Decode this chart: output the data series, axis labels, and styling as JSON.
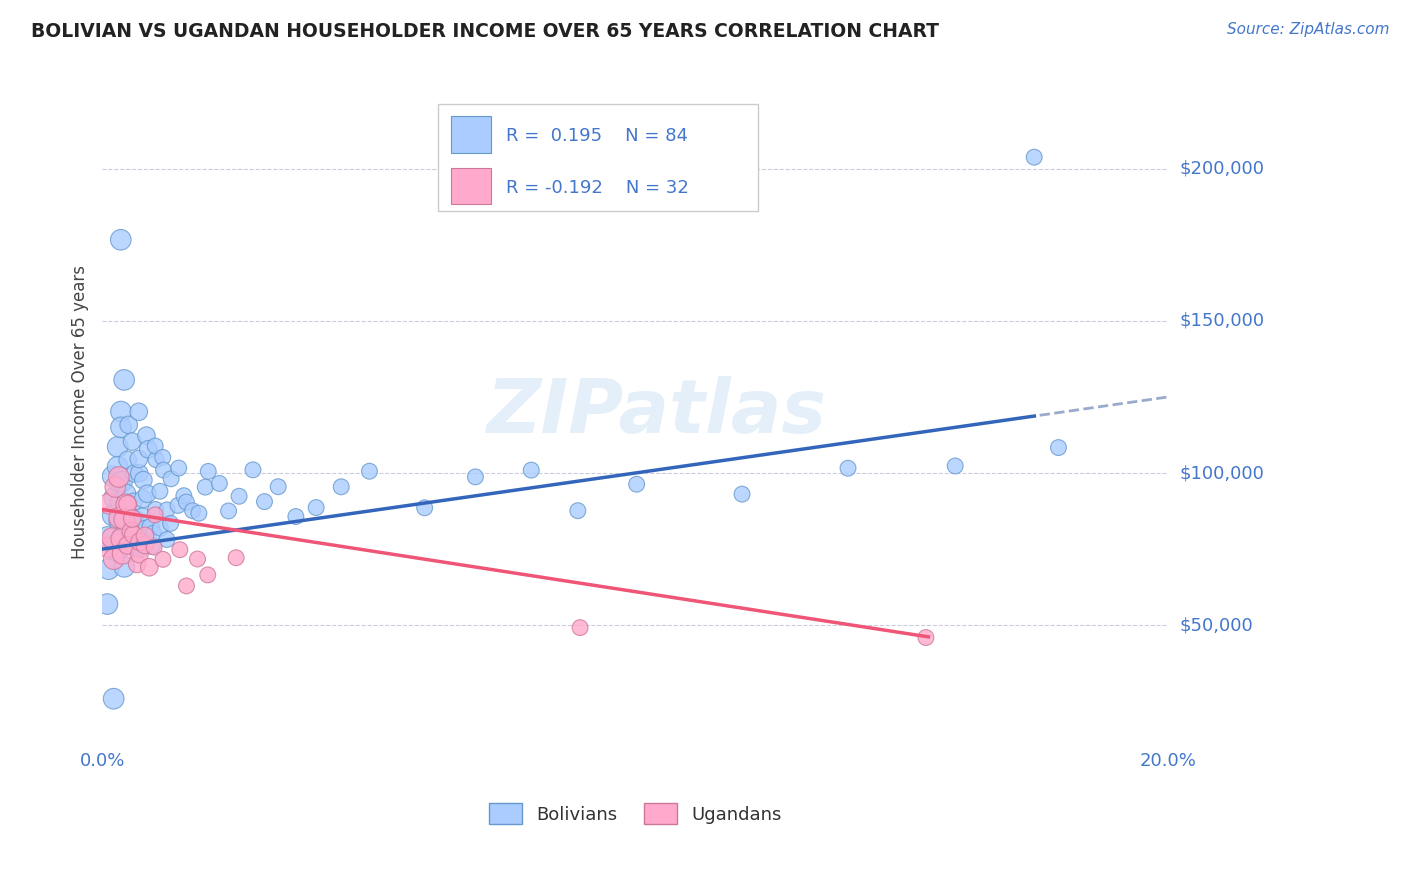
{
  "title": "BOLIVIAN VS UGANDAN HOUSEHOLDER INCOME OVER 65 YEARS CORRELATION CHART",
  "source": "Source: ZipAtlas.com",
  "ylabel": "Householder Income Over 65 years",
  "xmin": 0.0,
  "xmax": 0.2,
  "ymin": 10000,
  "ymax": 230000,
  "yticks": [
    50000,
    100000,
    150000,
    200000
  ],
  "ytick_labels": [
    "$50,000",
    "$100,000",
    "$150,000",
    "$200,000"
  ],
  "background_color": "#ffffff",
  "grid_color": "#aaaacc",
  "title_color": "#222222",
  "axis_color": "#4477cc",
  "watermark": "ZIPatlas",
  "bolivia_color": "#aaccff",
  "uganda_color": "#ffaacc",
  "bolivia_edge": "#6699cc",
  "uganda_edge": "#cc7799",
  "bolivia_R": 0.195,
  "bolivia_N": 84,
  "uganda_R": -0.192,
  "uganda_N": 32,
  "legend_label_1": "Bolivians",
  "legend_label_2": "Ugandans",
  "bolivia_trend_color": "#3366bb",
  "uganda_trend_color": "#ee5577",
  "extension_color": "#99aacc",
  "bolivia_intercept": 75000,
  "bolivia_slope": 250000,
  "uganda_intercept": 88000,
  "uganda_slope": -270000,
  "bolivia_x": [
    0.001,
    0.001,
    0.002,
    0.002,
    0.002,
    0.002,
    0.003,
    0.003,
    0.003,
    0.003,
    0.003,
    0.003,
    0.004,
    0.004,
    0.004,
    0.004,
    0.004,
    0.004,
    0.005,
    0.005,
    0.005,
    0.005,
    0.005,
    0.006,
    0.006,
    0.006,
    0.006,
    0.006,
    0.007,
    0.007,
    0.007,
    0.007,
    0.007,
    0.008,
    0.008,
    0.008,
    0.008,
    0.009,
    0.009,
    0.009,
    0.009,
    0.01,
    0.01,
    0.01,
    0.01,
    0.011,
    0.011,
    0.011,
    0.012,
    0.012,
    0.012,
    0.013,
    0.013,
    0.014,
    0.014,
    0.015,
    0.016,
    0.017,
    0.018,
    0.019,
    0.02,
    0.022,
    0.024,
    0.026,
    0.028,
    0.03,
    0.033,
    0.036,
    0.04,
    0.045,
    0.05,
    0.06,
    0.07,
    0.08,
    0.09,
    0.1,
    0.12,
    0.14,
    0.16,
    0.18,
    0.001,
    0.002,
    0.003,
    0.175
  ],
  "bolivia_y": [
    70000,
    80000,
    90000,
    75000,
    100000,
    85000,
    120000,
    95000,
    110000,
    85000,
    75000,
    105000,
    130000,
    90000,
    115000,
    80000,
    100000,
    70000,
    105000,
    95000,
    85000,
    115000,
    75000,
    110000,
    90000,
    100000,
    80000,
    85000,
    120000,
    95000,
    105000,
    85000,
    75000,
    100000,
    110000,
    90000,
    80000,
    95000,
    105000,
    85000,
    75000,
    100000,
    90000,
    110000,
    80000,
    95000,
    85000,
    105000,
    90000,
    100000,
    80000,
    95000,
    85000,
    90000,
    100000,
    95000,
    90000,
    85000,
    90000,
    95000,
    100000,
    95000,
    90000,
    95000,
    100000,
    90000,
    95000,
    85000,
    90000,
    95000,
    100000,
    90000,
    95000,
    100000,
    90000,
    95000,
    95000,
    100000,
    100000,
    110000,
    55000,
    25000,
    175000,
    200000
  ],
  "uganda_x": [
    0.001,
    0.001,
    0.002,
    0.002,
    0.003,
    0.003,
    0.003,
    0.004,
    0.004,
    0.004,
    0.004,
    0.005,
    0.005,
    0.005,
    0.006,
    0.006,
    0.006,
    0.007,
    0.007,
    0.008,
    0.008,
    0.009,
    0.01,
    0.01,
    0.012,
    0.014,
    0.016,
    0.018,
    0.02,
    0.025,
    0.09,
    0.155
  ],
  "uganda_y": [
    75000,
    90000,
    80000,
    70000,
    85000,
    95000,
    100000,
    80000,
    90000,
    75000,
    85000,
    80000,
    75000,
    90000,
    80000,
    70000,
    85000,
    75000,
    80000,
    75000,
    80000,
    70000,
    75000,
    85000,
    70000,
    75000,
    65000,
    70000,
    68000,
    72000,
    50000,
    45000
  ]
}
